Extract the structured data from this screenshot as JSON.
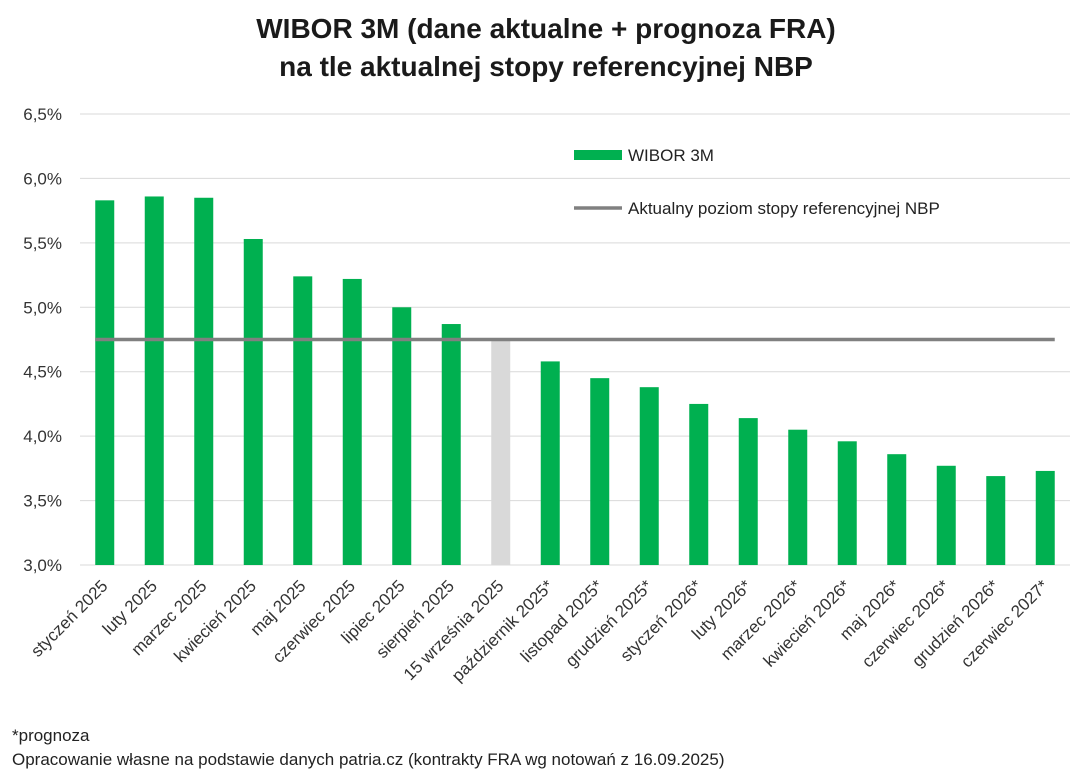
{
  "chart_data": {
    "type": "bar",
    "title_line1": "WIBOR 3M (dane aktualne + prognoza FRA)",
    "title_line2": "na tle aktualnej stopy referencyjnej NBP",
    "categories": [
      "styczeń 2025",
      "luty 2025",
      "marzec 2025",
      "kwiecień 2025",
      "maj 2025",
      "czerwiec 2025",
      "lipiec 2025",
      "sierpień 2025",
      "15 września 2025",
      "październik 2025*",
      "listopad 2025*",
      "grudzień 2025*",
      "styczeń 2026*",
      "luty 2026*",
      "marzec 2026*",
      "kwiecień 2026*",
      "maj 2026*",
      "czerwiec 2026*",
      "grudzień 2026*",
      "czerwiec 2027*"
    ],
    "series": [
      {
        "name": "WIBOR 3M",
        "values": [
          5.83,
          5.86,
          5.85,
          5.53,
          5.24,
          5.22,
          5.0,
          4.87,
          4.75,
          4.58,
          4.45,
          4.38,
          4.25,
          4.14,
          4.05,
          3.96,
          3.86,
          3.77,
          3.69,
          3.73
        ]
      }
    ],
    "highlight_index": 8,
    "reference_line": {
      "name": "Aktualny poziom stopy referencyjnej NBP",
      "value": 4.75
    },
    "ylim": [
      3.0,
      6.5
    ],
    "yticks": [
      3.0,
      3.5,
      4.0,
      4.5,
      5.0,
      5.5,
      6.0,
      6.5
    ],
    "ytick_labels": [
      "3,0%",
      "3,5%",
      "4,0%",
      "4,5%",
      "5,0%",
      "5,5%",
      "6,0%",
      "6,5%"
    ],
    "grid": true,
    "legend_position": "top-right",
    "colors": {
      "bar": "#00b050",
      "highlight": "#d9d9d9",
      "reference": "#808080",
      "grid": "#d9d9d9"
    }
  },
  "footnote": {
    "line1": "*prognoza",
    "line2": "Opracowanie własne na podstawie danych patria.cz (kontrakty FRA wg notowań z 16.09.2025)"
  }
}
